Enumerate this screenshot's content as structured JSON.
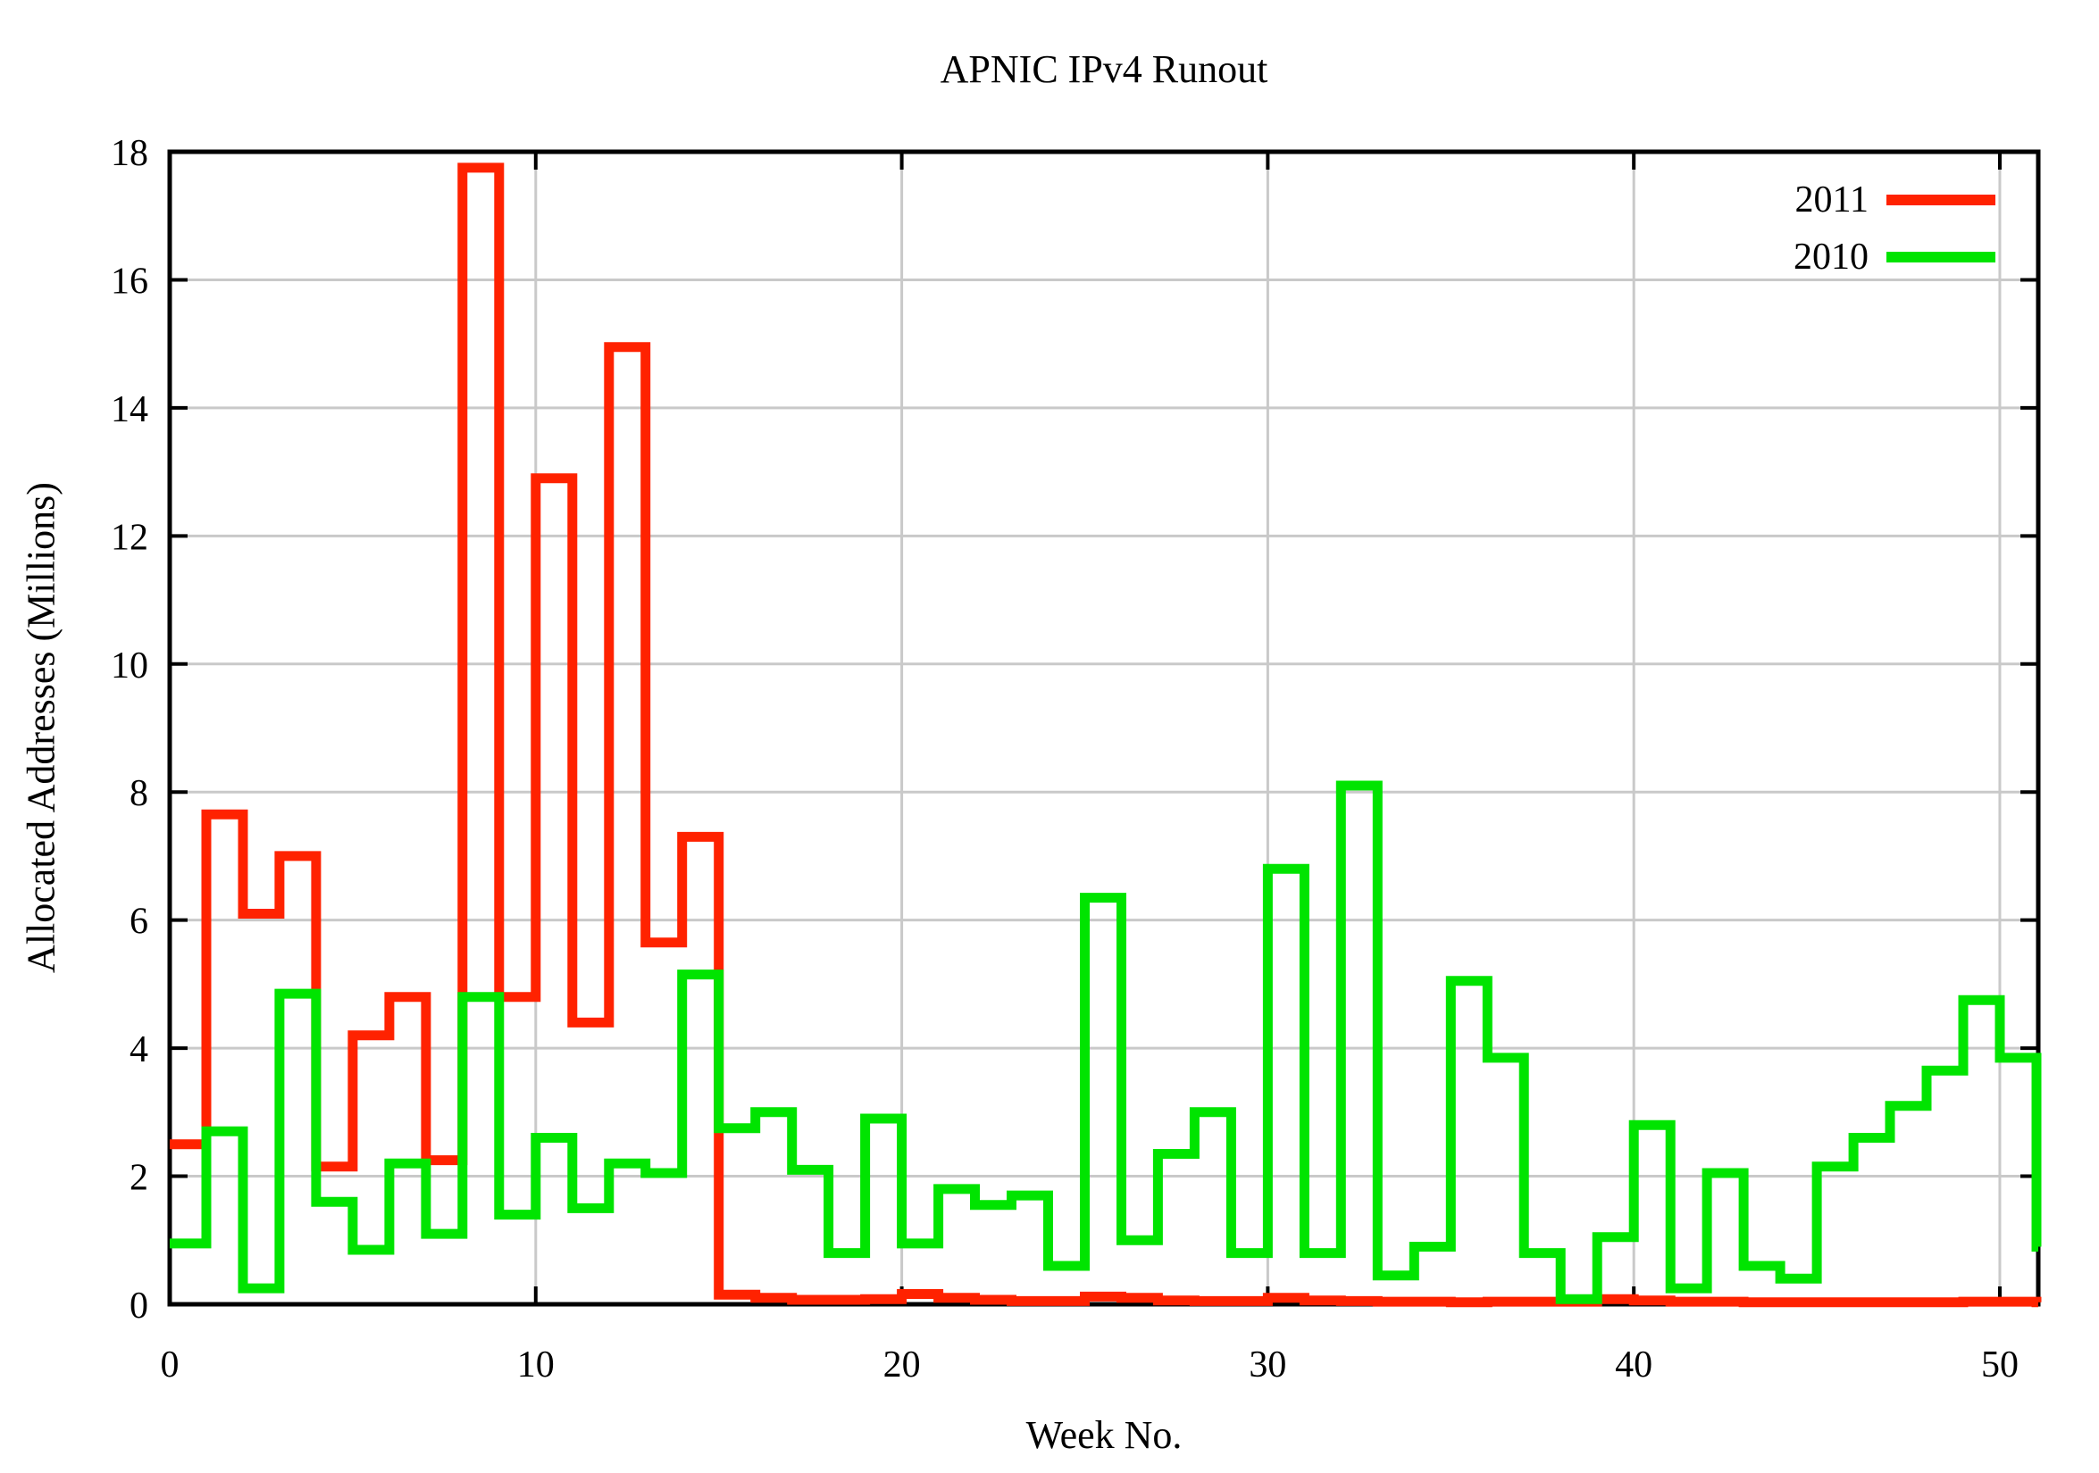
{
  "chart_data": {
    "type": "line",
    "subtype": "histeps-step-line",
    "title": "APNIC IPv4 Runout",
    "xlabel": "Week No.",
    "ylabel": "Allocated Addresses (Millions)",
    "xlim": [
      0,
      51.05
    ],
    "ylim": [
      0,
      18
    ],
    "xticks": [
      0,
      10,
      20,
      30,
      40,
      50
    ],
    "yticks": [
      0,
      2,
      4,
      6,
      8,
      10,
      12,
      14,
      16,
      18
    ],
    "grid": true,
    "grid_color": "#c9c9c9",
    "frame_color": "#000000",
    "background_color": "#ffffff",
    "legend_position": "top-right-inside",
    "bin_note": "step plot; each weekly value spans [week, week+1) on the x axis",
    "weeks": [
      0,
      1,
      2,
      3,
      4,
      5,
      6,
      7,
      8,
      9,
      10,
      11,
      12,
      13,
      14,
      15,
      16,
      17,
      18,
      19,
      20,
      21,
      22,
      23,
      24,
      25,
      26,
      27,
      28,
      29,
      30,
      31,
      32,
      33,
      34,
      35,
      36,
      37,
      38,
      39,
      40,
      41,
      42,
      43,
      44,
      45,
      46,
      47,
      48,
      49,
      50,
      51
    ],
    "series": [
      {
        "name": "2011",
        "color": "#ff2200",
        "values": [
          2.5,
          7.65,
          6.1,
          7.0,
          2.15,
          4.2,
          4.8,
          2.25,
          17.75,
          4.8,
          12.9,
          4.4,
          14.95,
          5.65,
          7.3,
          0.15,
          0.1,
          0.07,
          0.07,
          0.08,
          0.16,
          0.1,
          0.07,
          0.05,
          0.05,
          0.12,
          0.1,
          0.06,
          0.05,
          0.05,
          0.1,
          0.06,
          0.05,
          0.04,
          0.04,
          0.03,
          0.04,
          0.04,
          0.04,
          0.08,
          0.06,
          0.04,
          0.04,
          0.03,
          0.03,
          0.03,
          0.03,
          0.03,
          0.03,
          0.04,
          0.04,
          0.03
        ]
      },
      {
        "name": "2010",
        "color": "#00e400",
        "values": [
          0.95,
          2.7,
          0.25,
          4.85,
          1.6,
          0.85,
          2.2,
          1.1,
          4.8,
          1.4,
          2.6,
          1.5,
          2.2,
          2.05,
          5.15,
          2.75,
          3.0,
          2.1,
          0.8,
          2.9,
          0.95,
          1.8,
          1.55,
          1.7,
          0.6,
          6.35,
          1.0,
          2.35,
          3.0,
          0.8,
          6.8,
          0.8,
          8.1,
          0.45,
          0.9,
          5.05,
          3.85,
          0.8,
          0.08,
          1.05,
          2.8,
          0.25,
          2.05,
          0.6,
          0.4,
          2.15,
          2.6,
          3.1,
          3.65,
          4.75,
          3.85,
          0.9
        ]
      }
    ]
  }
}
